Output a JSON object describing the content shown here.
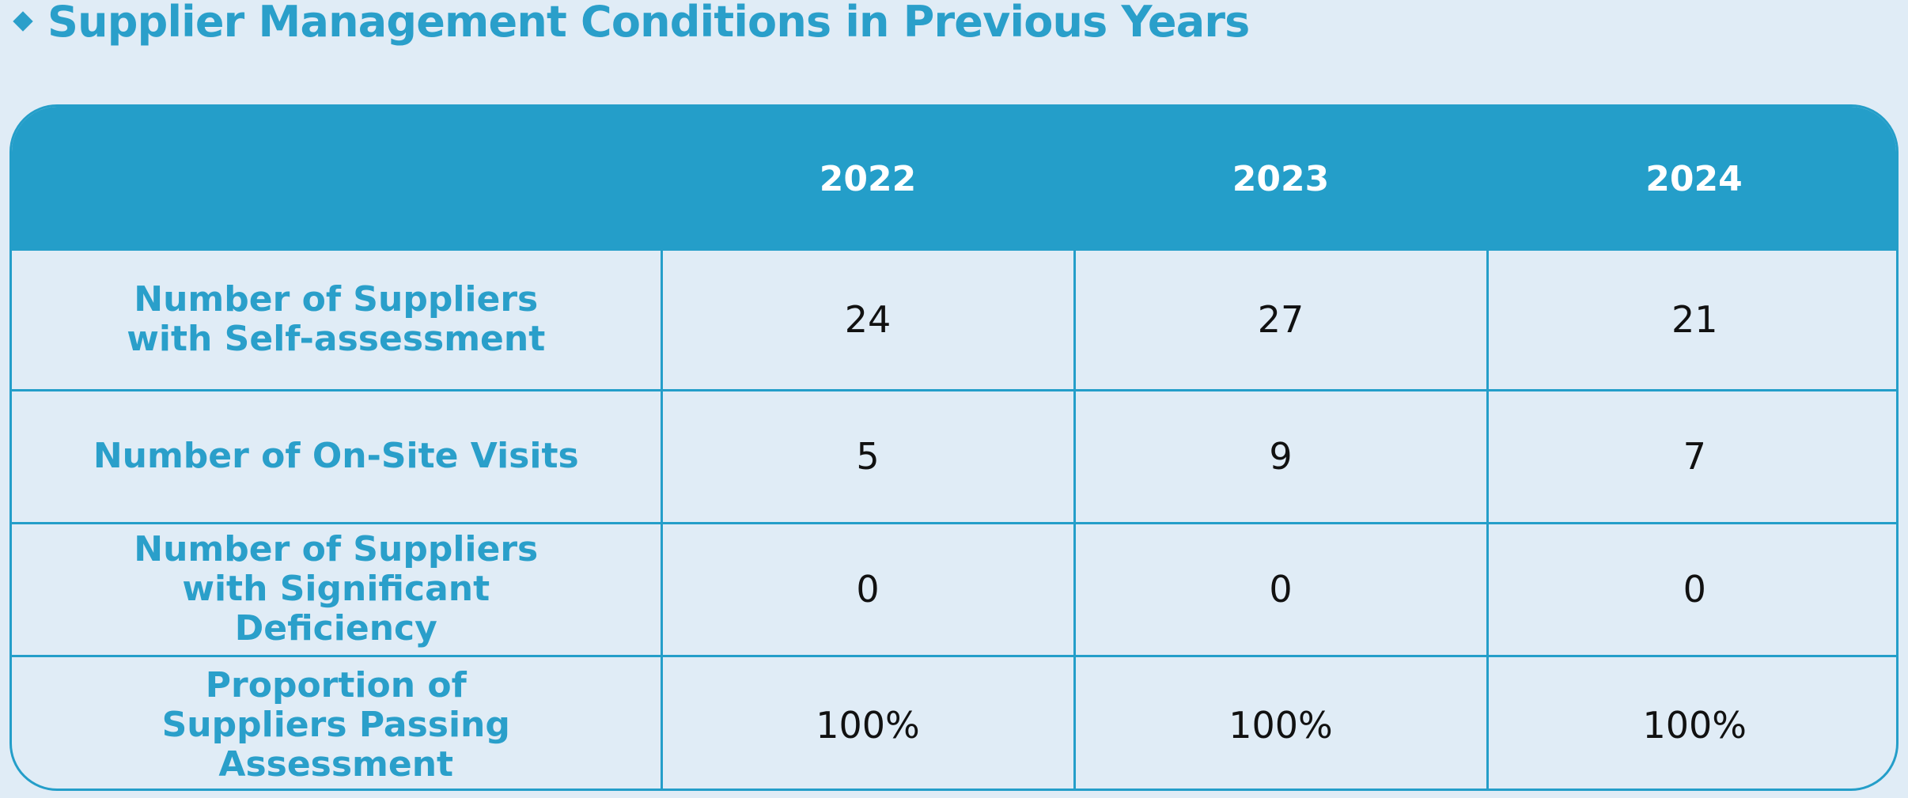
{
  "title": "Supplier Management Conditions in Previous Years",
  "table": {
    "columns": [
      "",
      "2022",
      "2023",
      "2024"
    ],
    "rows": [
      {
        "label": "Number of Suppliers with Self-assessment",
        "values": [
          "24",
          "27",
          "21"
        ]
      },
      {
        "label": "Number of On-Site Visits",
        "values": [
          "5",
          "9",
          "7"
        ]
      },
      {
        "label": "Number of Suppliers with Significant Deficiency",
        "values": [
          "0",
          "0",
          "0"
        ]
      },
      {
        "label": "Proportion of Suppliers Passing Assessment",
        "values": [
          "100%",
          "100%",
          "100%"
        ]
      }
    ]
  },
  "colors": {
    "accent": "#249ec9",
    "title": "#2a9fca",
    "background": "#e0ecf6",
    "value_text": "#111111"
  }
}
